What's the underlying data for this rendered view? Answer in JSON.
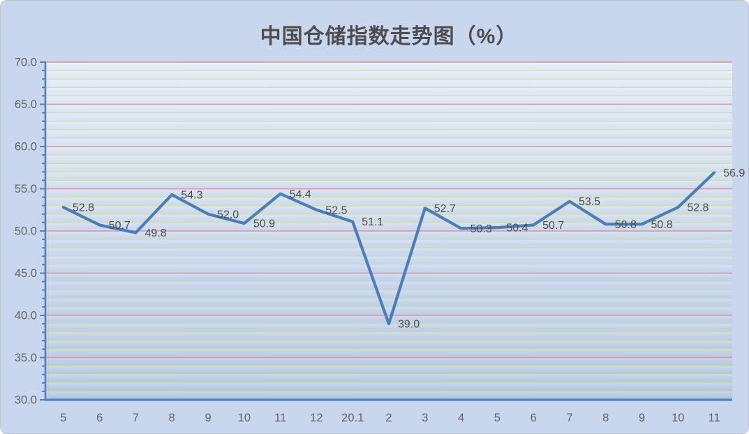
{
  "window": {
    "background_color": "#c8d7ee",
    "border_color": "#bcc4d0"
  },
  "chart_data": {
    "type": "line",
    "title": "中国仓储指数走势图（%）",
    "title_color": "#4d4d4d",
    "categories": [
      "5",
      "6",
      "7",
      "8",
      "9",
      "10",
      "11",
      "12",
      "20.1",
      "2",
      "3",
      "4",
      "5",
      "6",
      "7",
      "8",
      "9",
      "10",
      "11"
    ],
    "values": [
      52.8,
      50.7,
      49.8,
      54.3,
      52.0,
      50.9,
      54.4,
      52.5,
      51.1,
      39.0,
      52.7,
      50.3,
      50.4,
      50.7,
      53.5,
      50.8,
      50.8,
      52.8,
      56.9
    ],
    "xlabel": "",
    "ylabel": "",
    "ylim": [
      30,
      70
    ],
    "y_tick_step": 5,
    "y_minor_step": 1,
    "y_tick_labels": [
      "30.0",
      "35.0",
      "40.0",
      "45.0",
      "50.0",
      "55.0",
      "60.0",
      "65.0",
      "70.0"
    ],
    "data_labels": true,
    "legend": "none",
    "grid": {
      "major_on": true,
      "minor_on": true,
      "major_color": "#d59da1",
      "minor_color": "#cddf9e"
    },
    "line_color": "#4a7ebb",
    "axis_color": "#4f81bd",
    "data_label_color": "#4c4c4c",
    "tick_label_color": "#636363",
    "plot_bg_top": "#e3ebf6",
    "plot_bg_bottom": "#b2c5e2"
  }
}
